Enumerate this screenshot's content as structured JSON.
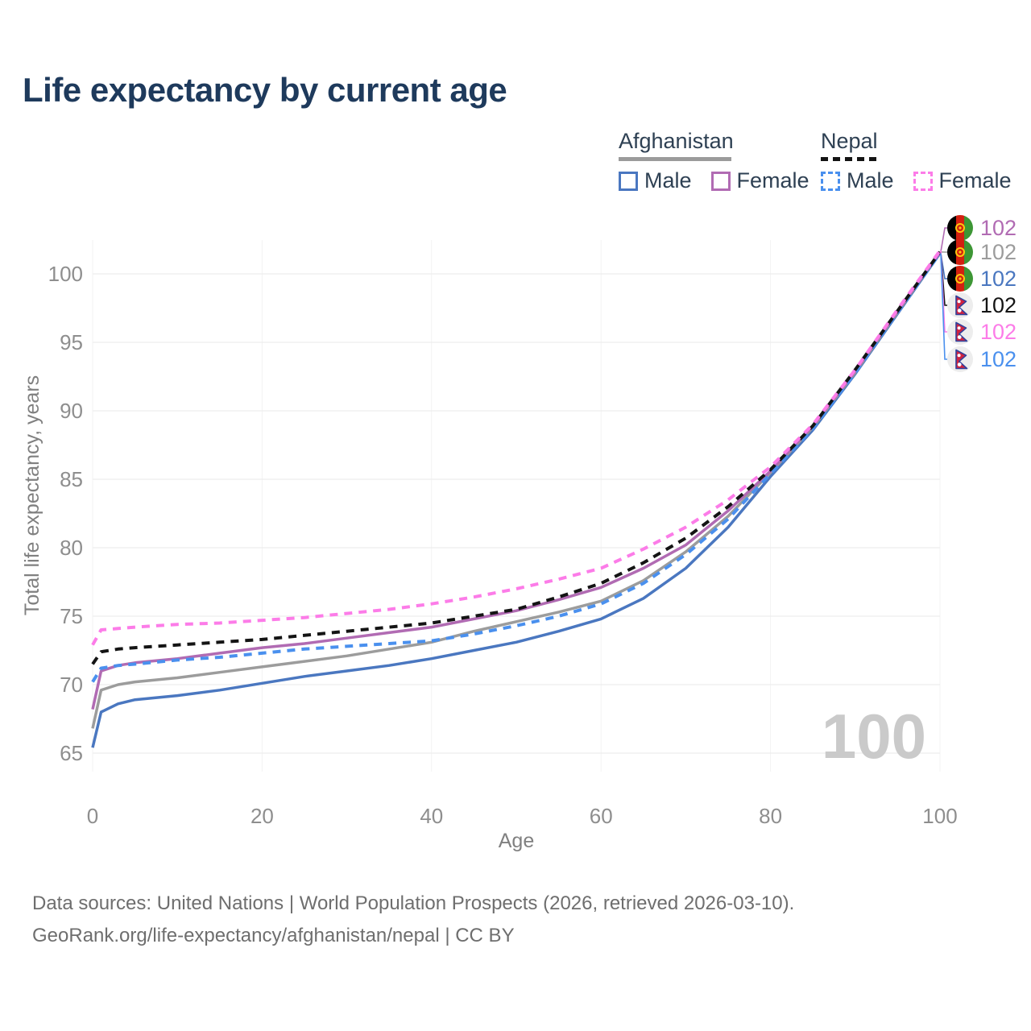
{
  "title": "Life expectancy by current age",
  "legend": {
    "groups": [
      {
        "label": "Afghanistan",
        "underline_style": "solid",
        "underline_color": "#9b9b9b",
        "items": [
          {
            "label": "Male",
            "color": "#4a77c0",
            "dash": false
          },
          {
            "label": "Female",
            "color": "#b16bb3",
            "dash": false
          }
        ]
      },
      {
        "label": "Nepal",
        "underline_style": "dashed",
        "underline_color": "#141414",
        "items": [
          {
            "label": "Male",
            "color": "#4a90ee",
            "dash": true
          },
          {
            "label": "Female",
            "color": "#fc7ce8",
            "dash": true
          }
        ]
      }
    ]
  },
  "chart_data": {
    "type": "line",
    "title": "Life expectancy by current age",
    "xlabel": "Age",
    "ylabel": "Total life expectancy, years",
    "xlim": [
      0,
      100
    ],
    "ylim": [
      65,
      102
    ],
    "xticks": [
      0,
      20,
      40,
      60,
      80,
      100
    ],
    "yticks": [
      65,
      70,
      75,
      80,
      85,
      90,
      95,
      100
    ],
    "grid": true,
    "x": [
      0,
      1,
      3,
      5,
      10,
      15,
      20,
      25,
      30,
      35,
      40,
      45,
      50,
      55,
      60,
      65,
      70,
      75,
      80,
      85,
      90,
      95,
      100
    ],
    "series": [
      {
        "name": "Afghanistan Male",
        "country": "Afghanistan",
        "sex": "Male",
        "color": "#4a77c0",
        "dash": "solid",
        "values": [
          65.4,
          68.0,
          68.6,
          68.9,
          69.2,
          69.6,
          70.1,
          70.6,
          71.0,
          71.4,
          71.9,
          72.5,
          73.1,
          73.9,
          74.8,
          76.3,
          78.5,
          81.5,
          85.2,
          88.6,
          92.7,
          97.1,
          101.5
        ]
      },
      {
        "name": "Afghanistan Both sexes",
        "country": "Afghanistan",
        "sex": "Both",
        "color": "#9c9c9c",
        "dash": "solid",
        "values": [
          66.8,
          69.6,
          70.0,
          70.2,
          70.5,
          70.9,
          71.3,
          71.7,
          72.1,
          72.6,
          73.1,
          73.9,
          74.6,
          75.3,
          76.1,
          77.6,
          79.7,
          82.3,
          85.5,
          88.8,
          92.8,
          97.2,
          101.6
        ]
      },
      {
        "name": "Afghanistan Female",
        "country": "Afghanistan",
        "sex": "Female",
        "color": "#b16bb3",
        "dash": "solid",
        "values": [
          68.2,
          71.0,
          71.4,
          71.6,
          71.9,
          72.3,
          72.7,
          73.0,
          73.4,
          73.8,
          74.2,
          74.8,
          75.4,
          76.2,
          77.1,
          78.5,
          80.2,
          82.7,
          85.6,
          88.9,
          92.9,
          97.3,
          101.6
        ]
      },
      {
        "name": "Nepal Male",
        "country": "Nepal",
        "sex": "Male",
        "color": "#4a90ee",
        "dash": "dashed",
        "values": [
          70.2,
          71.2,
          71.4,
          71.5,
          71.8,
          72.0,
          72.3,
          72.6,
          72.8,
          73.0,
          73.2,
          73.7,
          74.3,
          75.0,
          75.9,
          77.4,
          79.5,
          82.1,
          85.4,
          88.7,
          92.8,
          97.2,
          101.5
        ]
      },
      {
        "name": "Nepal Both sexes",
        "country": "Nepal",
        "sex": "Both",
        "color": "#141414",
        "dash": "dashed",
        "values": [
          71.5,
          72.4,
          72.6,
          72.7,
          72.9,
          73.1,
          73.3,
          73.6,
          73.9,
          74.2,
          74.5,
          75.0,
          75.5,
          76.4,
          77.4,
          78.9,
          80.7,
          83.0,
          85.7,
          88.9,
          93.0,
          97.3,
          101.6
        ]
      },
      {
        "name": "Nepal Female",
        "country": "Nepal",
        "sex": "Female",
        "color": "#fc7ce8",
        "dash": "dashed",
        "values": [
          72.9,
          74.0,
          74.1,
          74.2,
          74.4,
          74.5,
          74.7,
          74.9,
          75.2,
          75.5,
          75.9,
          76.4,
          77.0,
          77.7,
          78.5,
          79.9,
          81.5,
          83.5,
          85.9,
          89.0,
          93.0,
          97.4,
          101.7
        ]
      }
    ]
  },
  "end_labels": [
    {
      "flag": "Afghanistan",
      "series": "Afghanistan Female",
      "series_index": 2,
      "value": "102",
      "color": "#b16bb3"
    },
    {
      "flag": "Afghanistan",
      "series": "Afghanistan Both sexes",
      "series_index": 1,
      "value": "102",
      "color": "#9c9c9c"
    },
    {
      "flag": "Afghanistan",
      "series": "Afghanistan Male",
      "series_index": 0,
      "value": "102",
      "color": "#4a77c0"
    },
    {
      "flag": "Nepal",
      "series": "Nepal Both sexes",
      "series_index": 4,
      "value": "102",
      "color": "#141414"
    },
    {
      "flag": "Nepal",
      "series": "Nepal Female",
      "series_index": 5,
      "value": "102",
      "color": "#fc7ce8"
    },
    {
      "flag": "Nepal",
      "series": "Nepal Male",
      "series_index": 3,
      "value": "102",
      "color": "#4a90ee"
    }
  ],
  "watermark": "100",
  "footer": {
    "line1": "Data sources: United Nations | World Population Prospects (2026, retrieved 2026-03-10).",
    "line2": "GeoRank.org/life-expectancy/afghanistan/nepal | CC BY"
  }
}
